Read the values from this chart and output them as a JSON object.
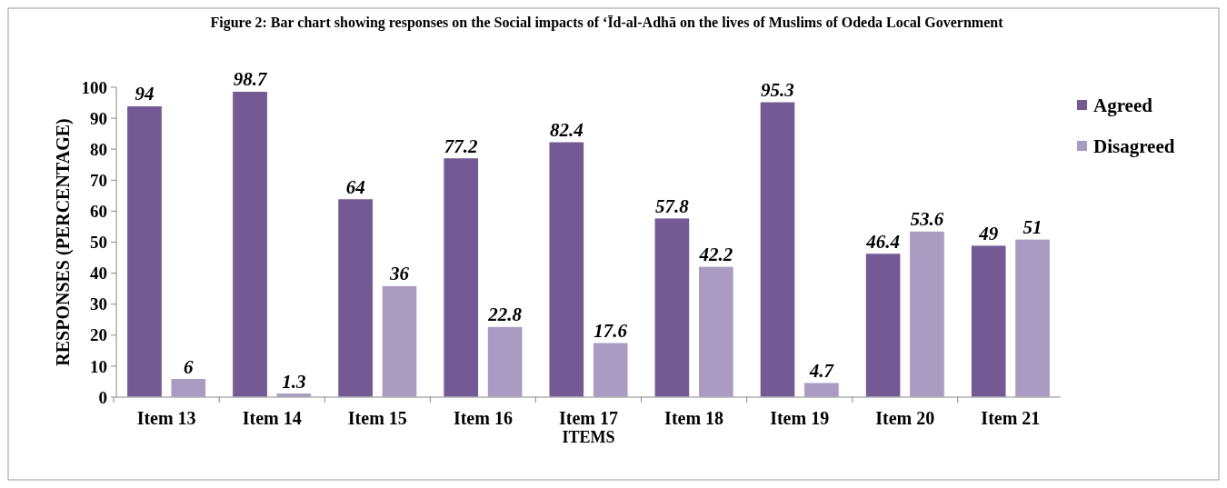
{
  "chart_data": {
    "type": "bar",
    "title": "Figure 2: Bar chart showing responses on the Social impacts of ‘Īd-al-Adhā on the lives of Muslims of Odeda Local Government",
    "xlabel": "ITEMS",
    "ylabel": "RESPONSES (PERCENTAGE)",
    "categories": [
      "Item 13",
      "Item 14",
      "Item 15",
      "Item 16",
      "Item 17",
      "Item 18",
      "Item 19",
      "Item 20",
      "Item 21"
    ],
    "series": [
      {
        "name": "Agreed",
        "color": "#735a94",
        "values": [
          94,
          98.7,
          64,
          77.2,
          82.4,
          57.8,
          95.3,
          46.4,
          49
        ]
      },
      {
        "name": "Disagreed",
        "color": "#a99bc2",
        "values": [
          6,
          1.3,
          36,
          22.8,
          17.6,
          42.2,
          4.7,
          53.6,
          51
        ]
      }
    ],
    "ylim": [
      0,
      100
    ],
    "yticks": [
      0,
      10,
      20,
      30,
      40,
      50,
      60,
      70,
      80,
      90,
      100
    ],
    "data_labels": true,
    "legend": "right",
    "grid": false
  }
}
